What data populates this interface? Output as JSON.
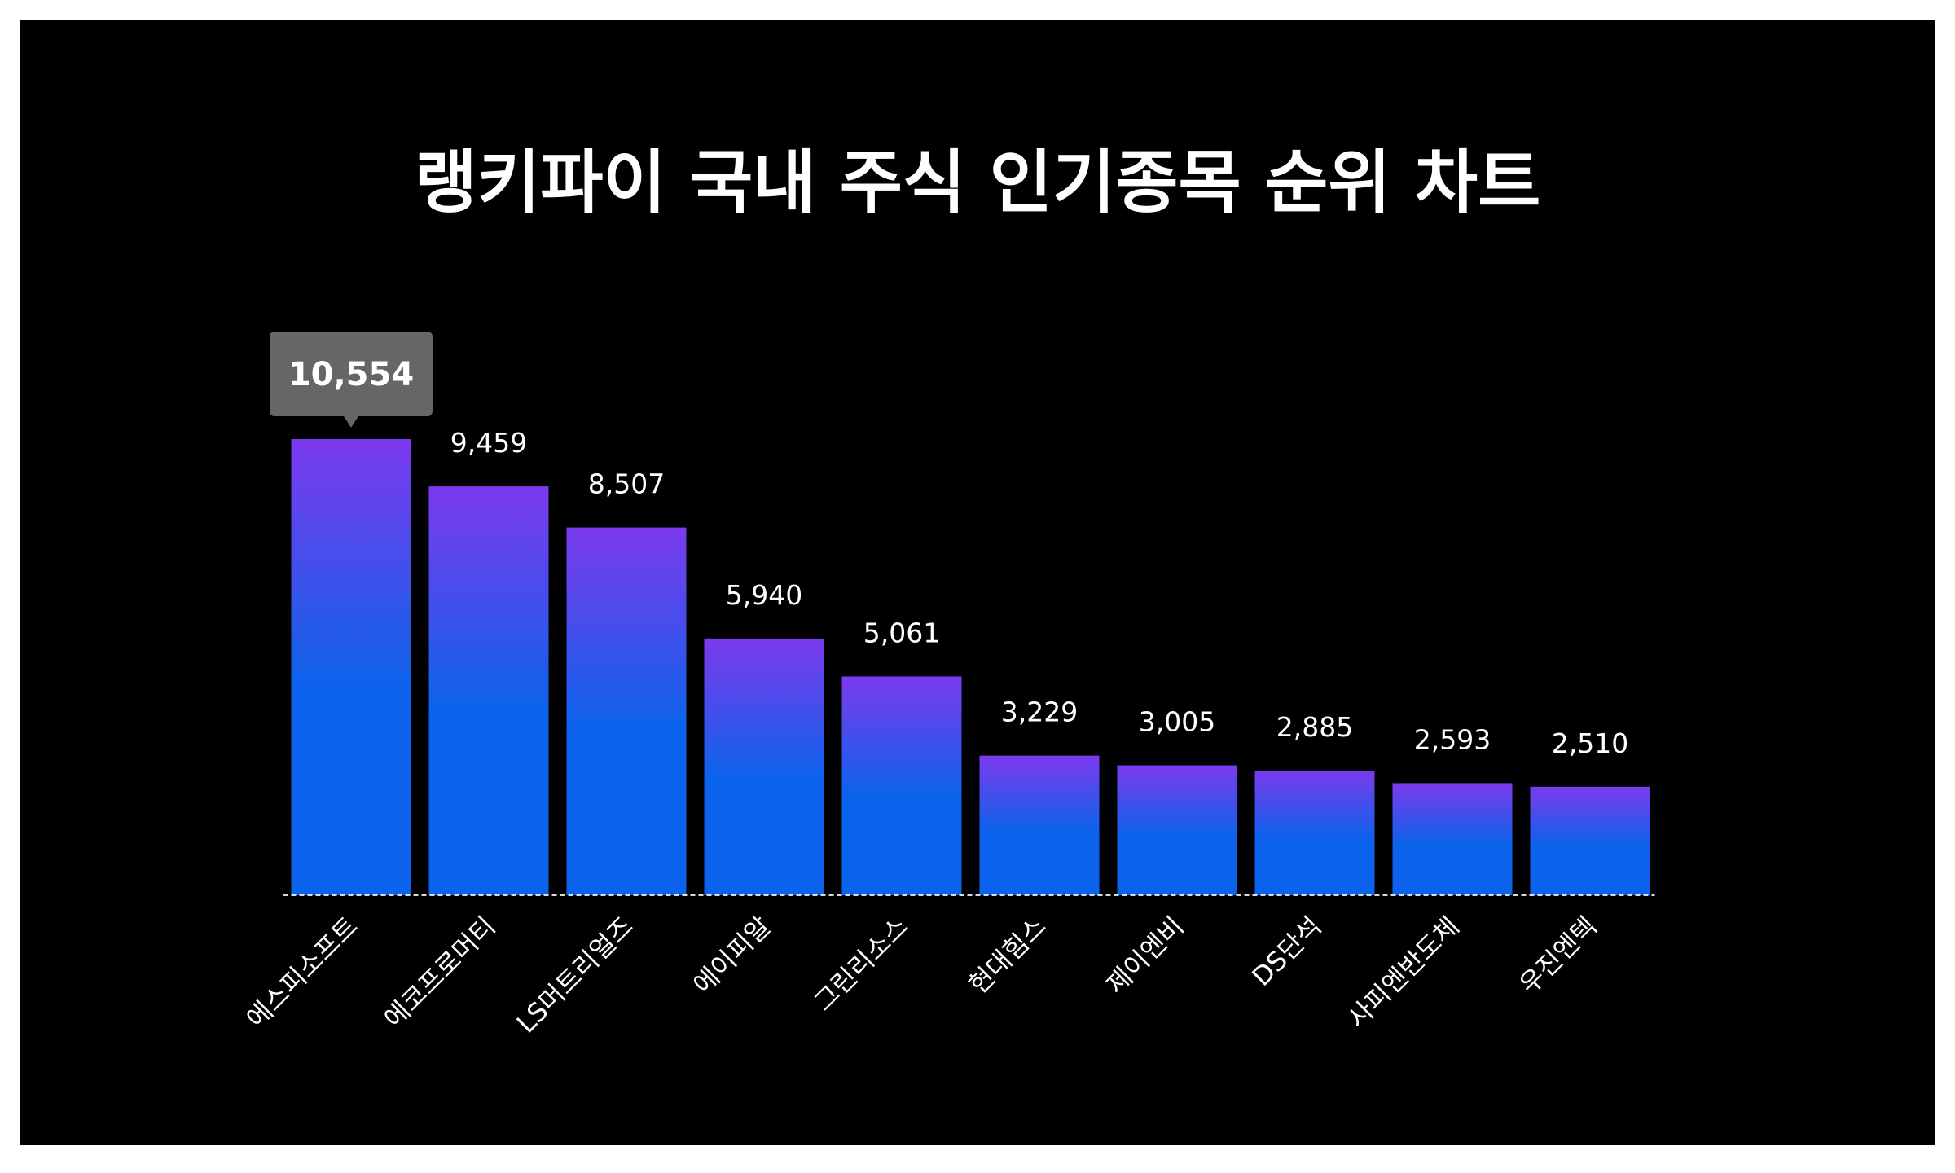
{
  "chart_data": {
    "type": "bar",
    "title": "랭키파이 국내 주식 인기종목 순위 차트",
    "categories": [
      "에스피소프트",
      "에코프로머티",
      "LS머트리얼즈",
      "에이피알",
      "그린리소스",
      "현대힘스",
      "제이엔비",
      "DS단석",
      "사피엔반도체",
      "우진엔텍"
    ],
    "values": [
      10554,
      9459,
      8507,
      5940,
      5061,
      3229,
      3005,
      2885,
      2593,
      2510
    ],
    "value_labels": [
      "10,554",
      "9,459",
      "8,507",
      "5,940",
      "5,061",
      "3,229",
      "3,005",
      "2,885",
      "2,593",
      "2,510"
    ],
    "highlighted_index": 0,
    "ylim": [
      0,
      10554
    ],
    "grid": false,
    "xlabel": "",
    "ylabel": "",
    "colors": {
      "background": "#000000",
      "bar_top": "#7c3aed",
      "bar_bottom": "#0b63eb",
      "tooltip": "#666666",
      "baseline": "#ffffff",
      "text": "#ffffff"
    }
  }
}
